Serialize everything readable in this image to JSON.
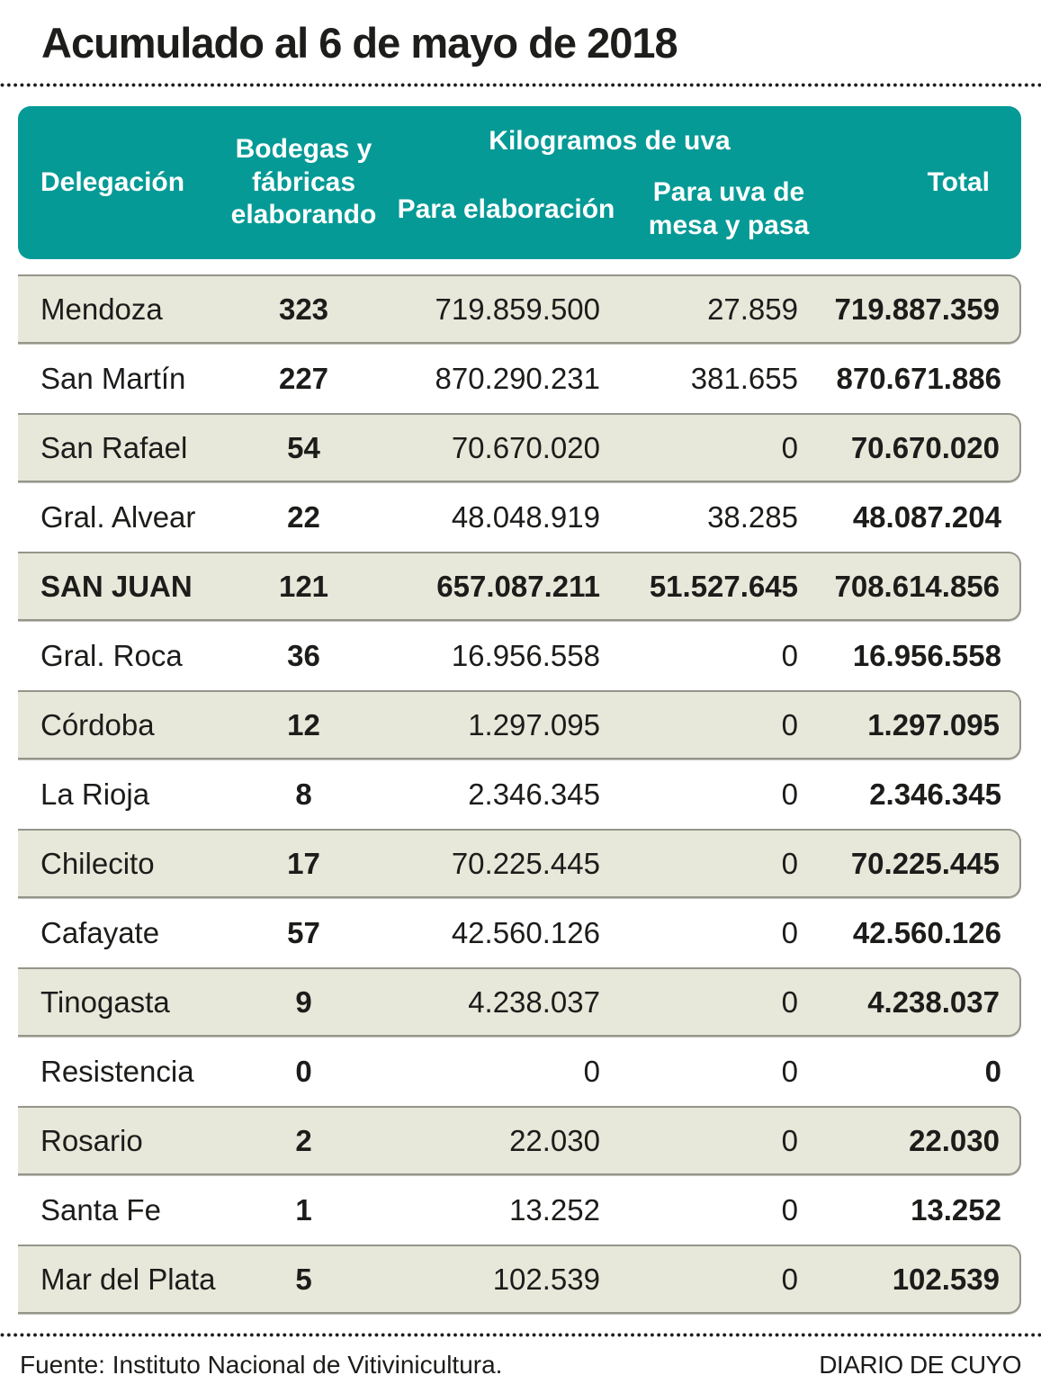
{
  "title": "Acumulado al 6 de mayo de 2018",
  "colors": {
    "header_bg": "#059a96",
    "header_text": "#ffffff",
    "row_shaded_bg": "#e7e7da",
    "row_border": "#95958b",
    "text": "#1c1c1a"
  },
  "table": {
    "headers": {
      "delegacion": "Delegación",
      "bodegas": "Bodegas y fábricas elaborando",
      "kilogramos_group": "Kilogramos de uva",
      "para_elaboracion": "Para elaboración",
      "para_uva": "Para uva de mesa y pasa",
      "total": "Total"
    },
    "rows": [
      {
        "delegacion": "Mendoza",
        "bodegas": "323",
        "para_elaboracion": "719.859.500",
        "para_uva": "27.859",
        "total": "719.887.359"
      },
      {
        "delegacion": "San Martín",
        "bodegas": "227",
        "para_elaboracion": "870.290.231",
        "para_uva": "381.655",
        "total": "870.671.886"
      },
      {
        "delegacion": "San Rafael",
        "bodegas": "54",
        "para_elaboracion": "70.670.020",
        "para_uva": "0",
        "total": "70.670.020"
      },
      {
        "delegacion": "Gral. Alvear",
        "bodegas": "22",
        "para_elaboracion": "48.048.919",
        "para_uva": "38.285",
        "total": "48.087.204"
      },
      {
        "delegacion": "SAN JUAN",
        "bodegas": "121",
        "para_elaboracion": "657.087.211",
        "para_uva": "51.527.645",
        "total": "708.614.856"
      },
      {
        "delegacion": "Gral. Roca",
        "bodegas": "36",
        "para_elaboracion": "16.956.558",
        "para_uva": "0",
        "total": "16.956.558"
      },
      {
        "delegacion": "Córdoba",
        "bodegas": "12",
        "para_elaboracion": "1.297.095",
        "para_uva": "0",
        "total": "1.297.095"
      },
      {
        "delegacion": "La Rioja",
        "bodegas": "8",
        "para_elaboracion": "2.346.345",
        "para_uva": "0",
        "total": "2.346.345"
      },
      {
        "delegacion": "Chilecito",
        "bodegas": "17",
        "para_elaboracion": "70.225.445",
        "para_uva": "0",
        "total": "70.225.445"
      },
      {
        "delegacion": "Cafayate",
        "bodegas": "57",
        "para_elaboracion": "42.560.126",
        "para_uva": "0",
        "total": "42.560.126"
      },
      {
        "delegacion": "Tinogasta",
        "bodegas": "9",
        "para_elaboracion": "4.238.037",
        "para_uva": "0",
        "total": "4.238.037"
      },
      {
        "delegacion": "Resistencia",
        "bodegas": "0",
        "para_elaboracion": "0",
        "para_uva": "0",
        "total": "0"
      },
      {
        "delegacion": "Rosario",
        "bodegas": "2",
        "para_elaboracion": "22.030",
        "para_uva": "0",
        "total": "22.030"
      },
      {
        "delegacion": "Santa Fe",
        "bodegas": "1",
        "para_elaboracion": "13.252",
        "para_uva": "0",
        "total": "13.252"
      },
      {
        "delegacion": "Mar del Plata",
        "bodegas": "5",
        "para_elaboracion": "102.539",
        "para_uva": "0",
        "total": "102.539"
      }
    ]
  },
  "footer": {
    "source": "Fuente: Instituto Nacional de Vitivinicultura.",
    "credit": "DIARIO DE CUYO"
  },
  "chart_data": {
    "type": "table",
    "title": "Acumulado al 6 de mayo de 2018",
    "columns": [
      "Delegación",
      "Bodegas y fábricas elaborando",
      "Kilogramos de uva - Para elaboración",
      "Kilogramos de uva - Para uva de mesa y pasa",
      "Total"
    ],
    "rows": [
      [
        "Mendoza",
        323,
        719859500,
        27859,
        719887359
      ],
      [
        "San Martín",
        227,
        870290231,
        381655,
        870671886
      ],
      [
        "San Rafael",
        54,
        70670020,
        0,
        70670020
      ],
      [
        "Gral. Alvear",
        22,
        48048919,
        38285,
        48087204
      ],
      [
        "SAN JUAN",
        121,
        657087211,
        51527645,
        708614856
      ],
      [
        "Gral. Roca",
        36,
        16956558,
        0,
        16956558
      ],
      [
        "Córdoba",
        12,
        1297095,
        0,
        1297095
      ],
      [
        "La Rioja",
        8,
        2346345,
        0,
        2346345
      ],
      [
        "Chilecito",
        17,
        70225445,
        0,
        70225445
      ],
      [
        "Cafayate",
        57,
        42560126,
        0,
        42560126
      ],
      [
        "Tinogasta",
        9,
        4238037,
        0,
        4238037
      ],
      [
        "Resistencia",
        0,
        0,
        0,
        0
      ],
      [
        "Rosario",
        2,
        22030,
        0,
        22030
      ],
      [
        "Santa Fe",
        1,
        13252,
        0,
        13252
      ],
      [
        "Mar del Plata",
        5,
        102539,
        0,
        102539
      ]
    ],
    "source": "Instituto Nacional de Vitivinicultura",
    "credit": "DIARIO DE CUYO"
  }
}
